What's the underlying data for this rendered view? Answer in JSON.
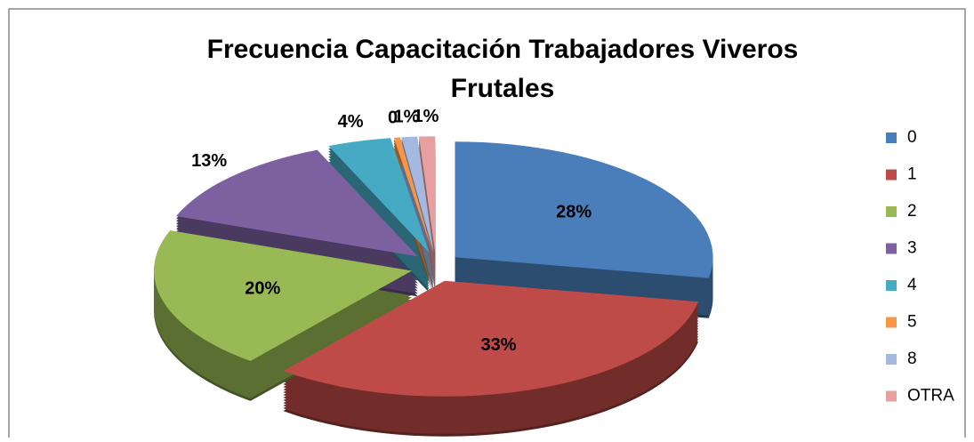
{
  "chart_data": {
    "type": "pie",
    "title": "Frecuencia Capacitación Trabajadores Viveros Frutales",
    "categories": [
      "0",
      "1",
      "2",
      "3",
      "4",
      "5",
      "8",
      "OTRA"
    ],
    "values": [
      28,
      33,
      20,
      13,
      4,
      0.4,
      1,
      1
    ],
    "value_labels": [
      "28%",
      "33%",
      "20%",
      "13%",
      "4%",
      "0",
      "1%",
      "1%"
    ],
    "colors": [
      "#4a7ebb",
      "#be4b48",
      "#98b954",
      "#7d60a0",
      "#46aac5",
      "#f79646",
      "#a5b8e0",
      "#e6a0a0"
    ],
    "legend": "right"
  }
}
